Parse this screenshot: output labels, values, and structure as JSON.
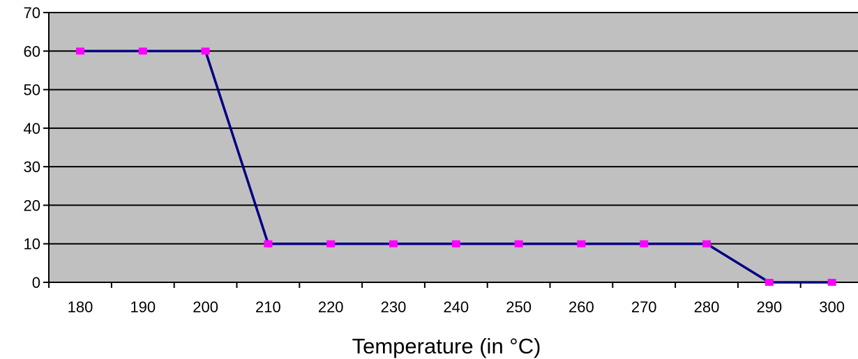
{
  "chart_data": {
    "type": "line",
    "title": "",
    "xlabel": "Temperature (in °C)",
    "ylabel": "",
    "x": [
      180,
      190,
      200,
      210,
      220,
      230,
      240,
      250,
      260,
      270,
      280,
      290,
      300
    ],
    "series": [
      {
        "name": "",
        "values": [
          60,
          60,
          60,
          10,
          10,
          10,
          10,
          10,
          10,
          10,
          10,
          0,
          0
        ]
      }
    ],
    "xticks": [
      "180",
      "190",
      "200",
      "210",
      "220",
      "230",
      "240",
      "250",
      "260",
      "270",
      "280",
      "290",
      "300"
    ],
    "yticks": [
      "0",
      "10",
      "20",
      "30",
      "40",
      "50",
      "60",
      "70"
    ],
    "ylim": [
      0,
      70
    ],
    "grid": true,
    "legend": "none",
    "colors": {
      "plot_background": "#c0c0c0",
      "gridline": "#000000",
      "line": "#000080",
      "marker": "#ff00ff"
    }
  }
}
